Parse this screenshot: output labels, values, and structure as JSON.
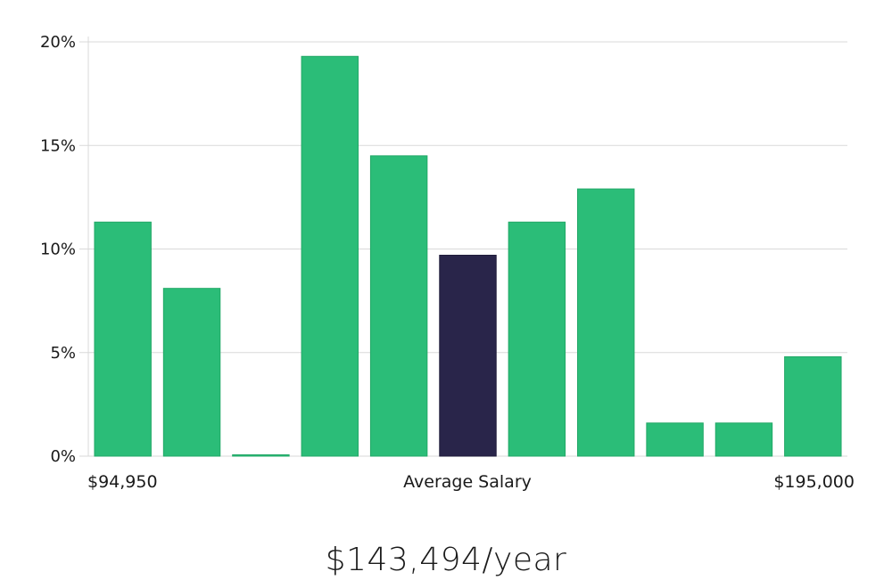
{
  "chart_data": {
    "type": "bar",
    "title": "",
    "xlabel": "Average Salary",
    "ylabel": "",
    "x_min_label": "$94,950",
    "x_max_label": "$195,000",
    "y_ticks": [
      "0%",
      "5%",
      "10%",
      "15%",
      "20%"
    ],
    "ylim": [
      0,
      20
    ],
    "y_unit": "%",
    "grid": true,
    "values": [
      11.3,
      8.1,
      0,
      19.3,
      14.5,
      9.7,
      11.3,
      12.9,
      1.6,
      1.6,
      4.8
    ],
    "highlight_index": 5,
    "colors": {
      "bar": "#2bbd78",
      "highlight": "#29254a",
      "grid": "#d9d9d9"
    }
  },
  "summary": {
    "salary": "$143,494/year"
  }
}
